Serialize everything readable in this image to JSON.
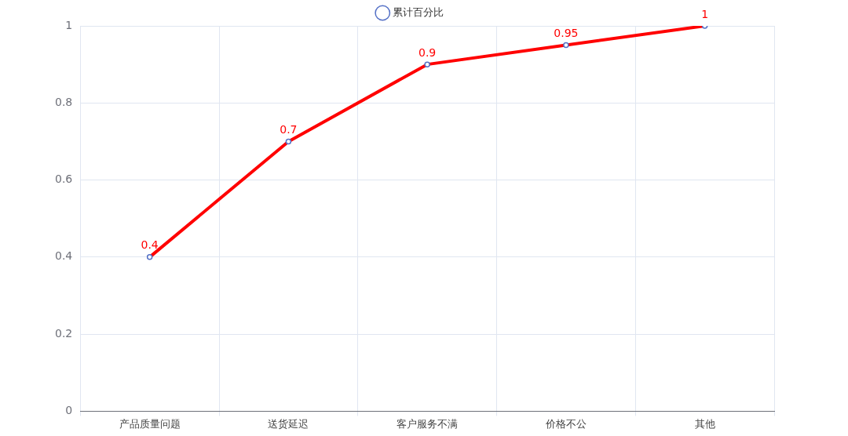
{
  "chart_data": {
    "type": "line",
    "categories": [
      "产品质量问题",
      "送货延迟",
      "客户服务不满",
      "价格不公",
      "其他"
    ],
    "series": [
      {
        "name": "累计百分比",
        "color": "#ff0000",
        "values": [
          0.4,
          0.7,
          0.9,
          0.95,
          1
        ]
      }
    ],
    "ylim": [
      0,
      1
    ],
    "yticks": [
      0,
      0.2,
      0.4,
      0.6,
      0.8,
      1
    ],
    "grid": true,
    "legend": "top",
    "marker": "circle",
    "data_labels": true
  }
}
